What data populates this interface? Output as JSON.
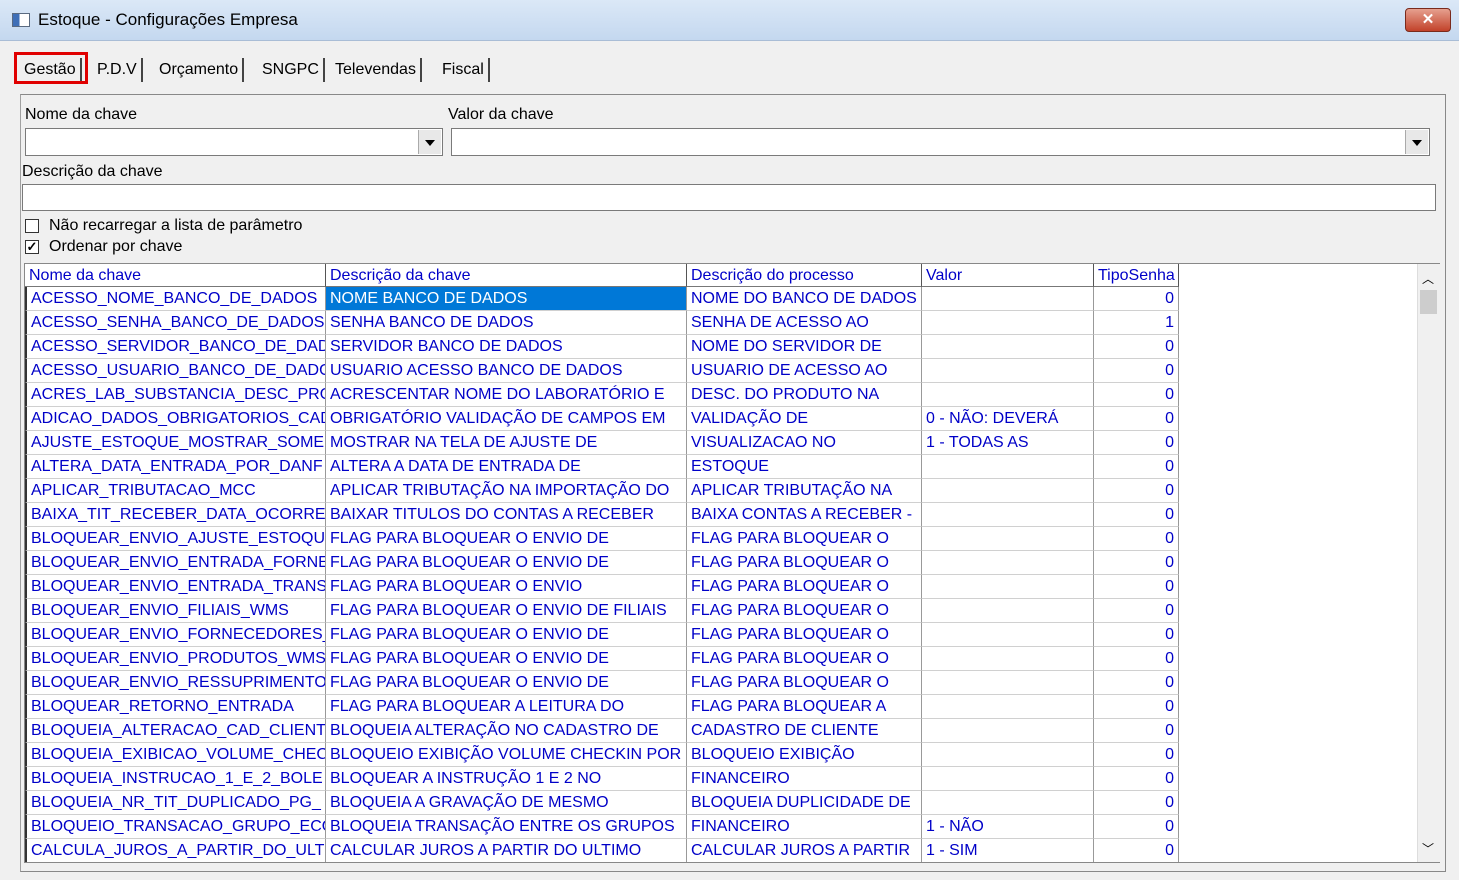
{
  "window": {
    "title": "Estoque - Configurações Empresa"
  },
  "tabs": [
    "Gestão",
    "P.D.V",
    "Orçamento",
    "SNGPC",
    "Televendas",
    "Fiscal"
  ],
  "form": {
    "key_name_label": "Nome da chave",
    "key_value_label": "Valor da chave",
    "description_label": "Descrição da chave",
    "no_reload_label": "Não recarregar a lista de parâmetro",
    "sort_label": "Ordenar por chave"
  },
  "table": {
    "columns": [
      "Nome da chave",
      "Descrição  da chave",
      "Descrição do processo",
      "Valor",
      "TipoSenha"
    ],
    "rows": [
      [
        "ACESSO_NOME_BANCO_DE_DADOS",
        "NOME BANCO DE DADOS",
        "NOME DO BANCO DE DADOS",
        null,
        0
      ],
      [
        "ACESSO_SENHA_BANCO_DE_DADOS",
        "SENHA BANCO DE DADOS",
        "SENHA DE ACESSO AO",
        null,
        1
      ],
      [
        "ACESSO_SERVIDOR_BANCO_DE_DAD",
        "SERVIDOR BANCO DE DADOS",
        "NOME DO SERVIDOR DE",
        null,
        0
      ],
      [
        "ACESSO_USUARIO_BANCO_DE_DADO",
        "USUARIO ACESSO BANCO DE DADOS",
        "USUARIO DE ACESSO AO",
        null,
        0
      ],
      [
        "ACRES_LAB_SUBSTANCIA_DESC_PRO",
        "ACRESCENTAR NOME DO LABORATÓRIO E",
        "DESC. DO PRODUTO NA",
        null,
        0
      ],
      [
        "ADICAO_DADOS_OBRIGATORIOS_CAD",
        "OBRIGATÓRIO VALIDAÇÃO DE CAMPOS EM",
        "VALIDAÇÃO DE",
        "0 - NÃO: DEVERÁ",
        0
      ],
      [
        "AJUSTE_ESTOQUE_MOSTRAR_SOME",
        "MOSTRAR NA TELA DE AJUSTE DE",
        "VISUALIZACAO NO",
        "1 - TODAS AS",
        0
      ],
      [
        "ALTERA_DATA_ENTRADA_POR_DANF",
        "ALTERA A DATA DE ENTRADA DE",
        "ESTOQUE",
        null,
        0
      ],
      [
        "APLICAR_TRIBUTACAO_MCC",
        "APLICAR TRIBUTAÇÃO NA IMPORTAÇÃO DO",
        "APLICAR TRIBUTAÇÃO NA",
        null,
        0
      ],
      [
        "BAIXA_TIT_RECEBER_DATA_OCORRE",
        "BAIXAR TITULOS DO CONTAS A RECEBER",
        "BAIXA CONTAS A RECEBER -",
        null,
        0
      ],
      [
        "BLOQUEAR_ENVIO_AJUSTE_ESTOQU",
        "FLAG PARA BLOQUEAR O ENVIO DE",
        "FLAG PARA BLOQUEAR O",
        null,
        0
      ],
      [
        "BLOQUEAR_ENVIO_ENTRADA_FORNE",
        "FLAG PARA BLOQUEAR O ENVIO DE",
        "FLAG PARA BLOQUEAR O",
        null,
        0
      ],
      [
        "BLOQUEAR_ENVIO_ENTRADA_TRANS",
        "FLAG PARA BLOQUEAR O ENVIO",
        "FLAG PARA BLOQUEAR O",
        null,
        0
      ],
      [
        "BLOQUEAR_ENVIO_FILIAIS_WMS",
        "FLAG PARA BLOQUEAR O ENVIO DE FILIAIS",
        "FLAG PARA BLOQUEAR O",
        null,
        0
      ],
      [
        "BLOQUEAR_ENVIO_FORNECEDORES_",
        "FLAG PARA BLOQUEAR O ENVIO DE",
        "FLAG PARA BLOQUEAR O",
        null,
        0
      ],
      [
        "BLOQUEAR_ENVIO_PRODUTOS_WMS",
        "FLAG PARA BLOQUEAR O ENVIO DE",
        "FLAG PARA BLOQUEAR O",
        null,
        0
      ],
      [
        "BLOQUEAR_ENVIO_RESSUPRIMENTO",
        "FLAG PARA BLOQUEAR O ENVIO DE",
        "FLAG PARA BLOQUEAR O",
        null,
        0
      ],
      [
        "BLOQUEAR_RETORNO_ENTRADA",
        "FLAG PARA BLOQUEAR A LEITURA DO",
        "FLAG PARA BLOQUEAR A",
        null,
        0
      ],
      [
        "BLOQUEIA_ALTERACAO_CAD_CLIENT",
        "BLOQUEIA ALTERAÇÃO NO CADASTRO DE",
        "CADASTRO DE CLIENTE",
        null,
        0
      ],
      [
        "BLOQUEIA_EXIBICAO_VOLUME_CHEC",
        "BLOQUEIO EXIBIÇÃO VOLUME CHECKIN POR",
        "BLOQUEIO EXIBIÇÃO",
        null,
        0
      ],
      [
        "BLOQUEIA_INSTRUCAO_1_E_2_BOLE",
        "BLOQUEAR A INSTRUÇÃO 1 E 2 NO",
        "FINANCEIRO",
        null,
        0
      ],
      [
        "BLOQUEIA_NR_TIT_DUPLICADO_PG_",
        "BLOQUEIA A GRAVAÇÃO DE MESMO",
        "BLOQUEIA DUPLICIDADE DE",
        null,
        0
      ],
      [
        "BLOQUEIO_TRANSACAO_GRUPO_ECO",
        "BLOQUEIA TRANSAÇÃO ENTRE OS GRUPOS",
        "FINANCEIRO",
        "1 - NÃO",
        0
      ],
      [
        "CALCULA_JUROS_A_PARTIR_DO_ULT",
        "CALCULAR JUROS A PARTIR DO ULTIMO",
        "CALCULAR JUROS A PARTIR",
        "1 - SIM",
        0
      ]
    ]
  }
}
